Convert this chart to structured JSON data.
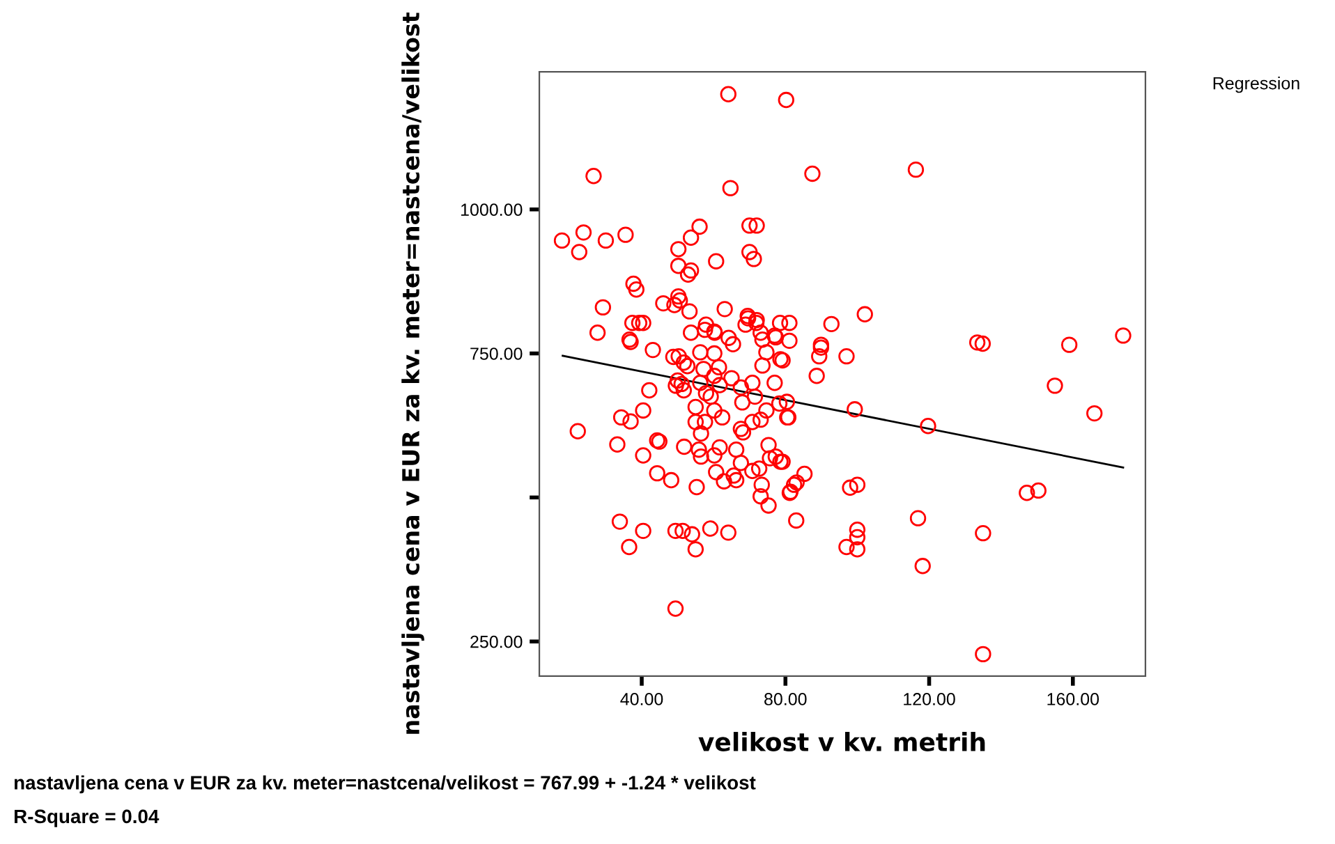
{
  "chart_data": {
    "type": "scatter",
    "xlabel": "velikost v kv. metrih",
    "ylabel": "nastavljena cena v EUR za kv. meter=nastcena/velikost",
    "annotations": [
      "Regression",
      "nastavljena cena v EUR za kv. meter=nastcena/velikost = 767.99 + -1.24 * velikost",
      "R-Square = 0.04"
    ],
    "xlim": [
      11.5,
      180.2
    ],
    "ylim": [
      190,
      1239
    ],
    "xticks": [
      {
        "value": 40,
        "label": "40.00"
      },
      {
        "value": 80,
        "label": "80.00"
      },
      {
        "value": 120,
        "label": "120.00"
      },
      {
        "value": 160,
        "label": "160.00"
      }
    ],
    "yticks": [
      {
        "value": 250,
        "label": "250.00"
      },
      {
        "value": 500,
        "label": null
      },
      {
        "value": 750,
        "label": "750.00"
      },
      {
        "value": 1000,
        "label": "1000.00"
      }
    ],
    "grid": false,
    "series": [
      {
        "color": "#ff0000",
        "marker": "circle",
        "x": [
          64.1,
          80.2,
          26.6,
          64.7,
          87.5,
          116.3,
          17.8,
          23.8,
          22.6,
          30.0,
          35.5,
          56.1,
          53.7,
          50.2,
          50.2,
          53.7,
          52.9,
          60.7,
          70.0,
          72.0,
          70.0,
          71.2,
          37.7,
          38.5,
          29.2,
          50.2,
          50.6,
          46.0,
          49.1,
          63.1,
          39.3,
          37.4,
          40.4,
          53.3,
          69.6,
          71.9,
          78.5,
          27.7,
          36.6,
          53.7,
          57.6,
          60.3,
          77.0,
          73.6,
          64.2,
          81.1,
          81.1,
          89.9,
          92.8,
          102.1,
          133.4,
          134.9,
          159.0,
          174.0,
          89.9,
          89.4,
          97.0,
          88.7,
          79.2,
          80.4,
          80.8,
          99.3,
          119.7,
          155.0,
          166.0,
          79.2,
          85.3,
          83.1,
          81.2,
          100.0,
          98.0,
          147.2,
          150.4,
          83.0,
          116.9,
          135.0,
          100.0,
          100.0,
          97.0,
          100.0,
          118.2,
          135.0,
          36.9,
          43.1,
          48.8,
          50.3,
          51.7,
          52.7,
          56.3,
          60.2,
          65.4,
          57.2,
          61.5,
          60.2,
          50.0,
          51.1,
          49.5,
          51.7,
          56.3,
          42.1,
          57.9,
          59.2,
          61.7,
          65.0,
          67.6,
          70.8,
          73.6,
          74.7,
          78.6,
          77.0,
          68.0,
          71.5,
          74.7,
          78.3,
          80.5,
          55.0,
          60.2,
          62.4,
          55.0,
          57.6,
          56.5,
          67.6,
          68.2,
          70.8,
          73.1,
          40.4,
          36.9,
          34.3,
          22.2,
          33.2,
          44.3,
          44.9,
          40.4,
          51.8,
          55.9,
          60.2,
          61.7,
          66.3,
          67.6,
          56.5,
          75.3,
          75.7,
          77.3,
          78.6,
          70.8,
          72.7,
          66.3,
          65.6,
          60.7,
          44.3,
          48.2,
          55.3,
          62.9,
          73.4,
          73.1,
          75.3,
          82.4,
          81.4,
          33.9,
          40.4,
          36.5,
          49.4,
          51.4,
          54.0,
          55.0,
          59.1,
          64.1,
          49.4,
          69.5,
          72.0,
          60.2,
          57.9,
          68.9,
          73.1,
          77.3
        ],
        "values": [
          1200,
          1190,
          1058,
          1037,
          1062,
          1069,
          946,
          960,
          926,
          946,
          956,
          970,
          951,
          931,
          902,
          894,
          887,
          910,
          972,
          972,
          926,
          914,
          871,
          861,
          830,
          849,
          842,
          837,
          834,
          827,
          803,
          803,
          803,
          823,
          811,
          803,
          803,
          786,
          774,
          786,
          791,
          786,
          781,
          774,
          777,
          803,
          772,
          765,
          801,
          818,
          769,
          767,
          765,
          781,
          760,
          745,
          745,
          711,
          738,
          666,
          639,
          653,
          624,
          694,
          646,
          562,
          541,
          526,
          508,
          522,
          517,
          508,
          512,
          460,
          464,
          438,
          444,
          431,
          414,
          410,
          381,
          228,
          770,
          756,
          744,
          745,
          734,
          728,
          752,
          750,
          766,
          723,
          726,
          711,
          703,
          697,
          694,
          686,
          699,
          686,
          681,
          675,
          695,
          707,
          691,
          699,
          729,
          752,
          740,
          699,
          665,
          675,
          651,
          663,
          639,
          657,
          651,
          639,
          631,
          631,
          611,
          619,
          613,
          631,
          635,
          651,
          632,
          639,
          615,
          592,
          599,
          597,
          573,
          588,
          583,
          573,
          587,
          583,
          560,
          571,
          591,
          568,
          571,
          562,
          546,
          550,
          530,
          538,
          544,
          542,
          530,
          518,
          528,
          522,
          502,
          486,
          522,
          510,
          458,
          442,
          414,
          442,
          442,
          436,
          410,
          446,
          439,
          307,
          815,
          808,
          788,
          800,
          800,
          786,
          778
        ]
      },
      {
        "type": "line",
        "color": "#000000",
        "marker": "none",
        "line_style": "solid",
        "x": [
          18,
          174
        ],
        "values": [
          746,
          552
        ]
      }
    ]
  }
}
